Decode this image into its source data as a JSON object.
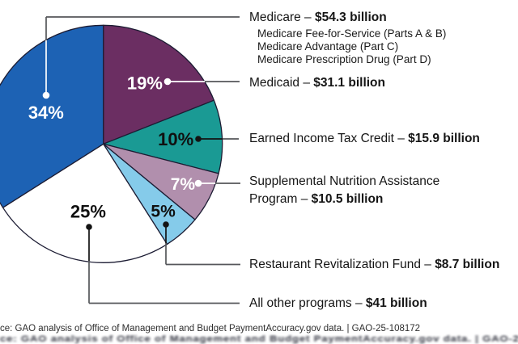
{
  "chart_data": {
    "type": "pie",
    "title": "",
    "legend_position": "right-callouts",
    "outline_color": "#1C1C33",
    "leader_line_color": "#55565A",
    "slices": [
      {
        "name": "Medicaid",
        "percent": 19,
        "percent_label": "19%",
        "amount": "$31.1 billion",
        "color": "#6B2E62",
        "percent_text_color": "#FFFFFF"
      },
      {
        "name": "Earned Income Tax Credit",
        "percent": 10,
        "percent_label": "10%",
        "amount": "$15.9 billion",
        "color": "#1A9A94",
        "percent_text_color": "#101010"
      },
      {
        "name": "Supplemental Nutrition Assistance Program",
        "percent": 7,
        "percent_label": "7%",
        "amount": "$10.5 billion",
        "color": "#B18FAD",
        "percent_text_color": "#FFFFFF"
      },
      {
        "name": "Restaurant Revitalization Fund",
        "percent": 5,
        "percent_label": "5%",
        "amount": "$8.7 billion",
        "color": "#85CBEA",
        "percent_text_color": "#101010"
      },
      {
        "name": "All other programs",
        "percent": 25,
        "percent_label": "25%",
        "amount": "$41 billion",
        "color": "#FFFFFF",
        "percent_text_color": "#101010"
      },
      {
        "name": "Medicare",
        "percent": 34,
        "percent_label": "34%",
        "amount": "$54.3 billion",
        "color": "#1D62B4",
        "percent_text_color": "#FFFFFF"
      }
    ]
  },
  "labels": {
    "medicare": {
      "prefix": "Medicare – ",
      "value": "$54.3 billion",
      "sub_items": [
        "Medicare Fee-for-Service (Parts A & B)",
        "Medicare Advantage (Part C)",
        "Medicare Prescription Drug (Part D)"
      ]
    },
    "medicaid": {
      "prefix": "Medicaid – ",
      "value": "$31.1 billion"
    },
    "eitc": {
      "prefix": "Earned Income Tax Credit – ",
      "value": "$15.9 billion"
    },
    "snap": {
      "prefix": "Supplemental Nutrition Assistance Program – ",
      "value": "$10.5 billion"
    },
    "rrf": {
      "prefix": "Restaurant Revitalization Fund – ",
      "value": "$8.7 billion"
    },
    "all_other": {
      "prefix": "All other programs – ",
      "value": "$41 billion"
    }
  },
  "source_line": "ce: GAO analysis of Office of Management and Budget PaymentAccuracy.gov data.  |  GAO-25-108172"
}
